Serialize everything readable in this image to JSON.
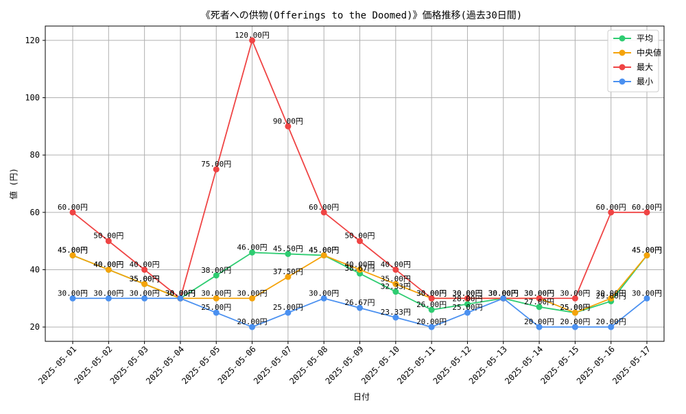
{
  "chart_data": {
    "type": "line",
    "title": "《死者への供物(Offerings to the Doomed)》価格推移(過去30日間)",
    "xlabel": "日付",
    "ylabel": "値 (円)",
    "categories": [
      "2025-05-01",
      "2025-05-02",
      "2025-05-03",
      "2025-05-04",
      "2025-05-05",
      "2025-05-06",
      "2025-05-07",
      "2025-05-08",
      "2025-05-09",
      "2025-05-10",
      "2025-05-11",
      "2025-05-12",
      "2025-05-13",
      "2025-05-14",
      "2025-05-15",
      "2025-05-16",
      "2025-05-17"
    ],
    "ylim": [
      15,
      125
    ],
    "yticks": [
      20,
      40,
      60,
      80,
      100,
      120
    ],
    "grid": true,
    "legend_position": "top-right",
    "value_suffix": "円",
    "series": [
      {
        "name": "平均",
        "color": "#2ecc71",
        "values": [
          45,
          40,
          35,
          30,
          38,
          46,
          45.5,
          45,
          38.67,
          32.33,
          26,
          28,
          30,
          27,
          25,
          29,
          45
        ]
      },
      {
        "name": "中央値",
        "color": "#f5a30a",
        "values": [
          45,
          40,
          35,
          30,
          30,
          30,
          37.5,
          45,
          40,
          35,
          30,
          30,
          30,
          30,
          25,
          30,
          45
        ]
      },
      {
        "name": "最大",
        "color": "#ef4444",
        "values": [
          60,
          50,
          40,
          30,
          75,
          120,
          90,
          60,
          50,
          40,
          30,
          30,
          30,
          30,
          30,
          60,
          60
        ]
      },
      {
        "name": "最小",
        "color": "#4a90f0",
        "values": [
          30,
          30,
          30,
          30,
          25,
          20,
          25,
          30,
          26.67,
          23.33,
          20,
          25,
          30,
          20,
          20,
          20,
          30
        ]
      }
    ]
  }
}
